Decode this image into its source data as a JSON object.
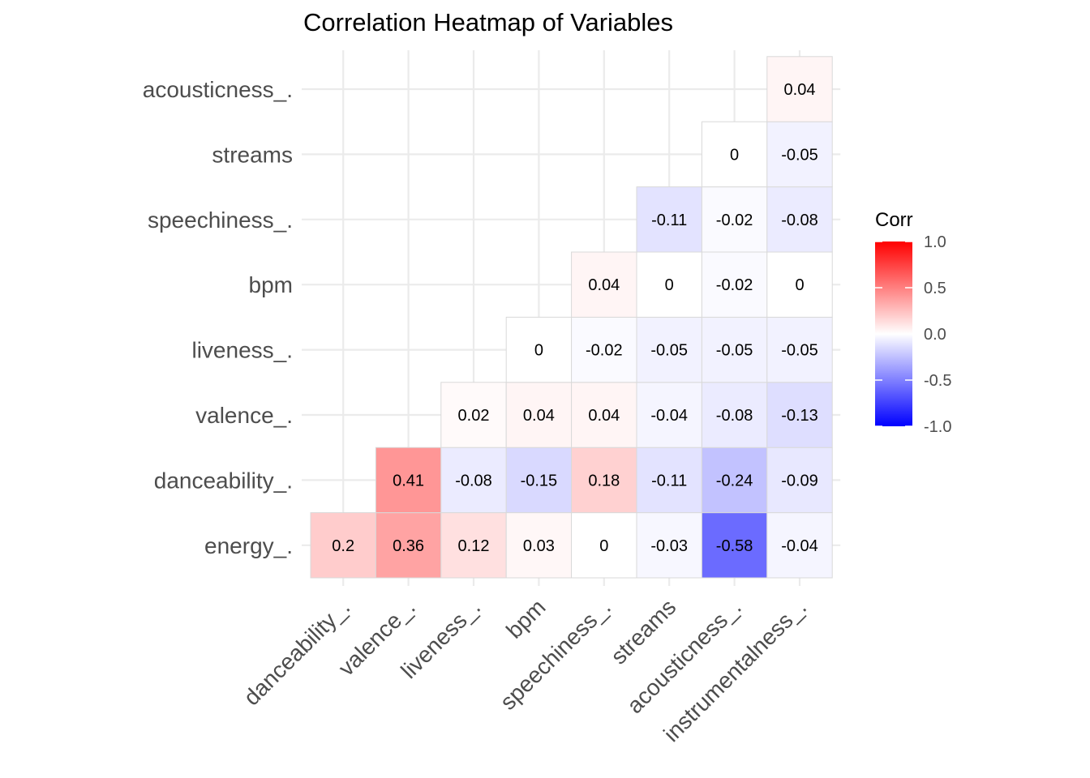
{
  "chart_data": {
    "type": "heatmap",
    "title": "Correlation Heatmap of Variables",
    "x_labels": [
      "danceability_.",
      "valence_.",
      "liveness_.",
      "bpm",
      "speechiness_.",
      "streams",
      "acousticness_.",
      "instrumentalness_."
    ],
    "y_labels": [
      "energy_.",
      "danceability_.",
      "valence_.",
      "liveness_.",
      "bpm",
      "speechiness_.",
      "streams",
      "acousticness_."
    ],
    "cells": [
      {
        "x": "danceability_.",
        "y": "energy_.",
        "value": 0.2,
        "label": "0.2"
      },
      {
        "x": "valence_.",
        "y": "energy_.",
        "value": 0.36,
        "label": "0.36"
      },
      {
        "x": "liveness_.",
        "y": "energy_.",
        "value": 0.12,
        "label": "0.12"
      },
      {
        "x": "bpm",
        "y": "energy_.",
        "value": 0.03,
        "label": "0.03"
      },
      {
        "x": "speechiness_.",
        "y": "energy_.",
        "value": 0,
        "label": "0"
      },
      {
        "x": "streams",
        "y": "energy_.",
        "value": -0.03,
        "label": "-0.03"
      },
      {
        "x": "acousticness_.",
        "y": "energy_.",
        "value": -0.58,
        "label": "-0.58"
      },
      {
        "x": "instrumentalness_.",
        "y": "energy_.",
        "value": -0.04,
        "label": "-0.04"
      },
      {
        "x": "valence_.",
        "y": "danceability_.",
        "value": 0.41,
        "label": "0.41"
      },
      {
        "x": "liveness_.",
        "y": "danceability_.",
        "value": -0.08,
        "label": "-0.08"
      },
      {
        "x": "bpm",
        "y": "danceability_.",
        "value": -0.15,
        "label": "-0.15"
      },
      {
        "x": "speechiness_.",
        "y": "danceability_.",
        "value": 0.18,
        "label": "0.18"
      },
      {
        "x": "streams",
        "y": "danceability_.",
        "value": -0.11,
        "label": "-0.11"
      },
      {
        "x": "acousticness_.",
        "y": "danceability_.",
        "value": -0.24,
        "label": "-0.24"
      },
      {
        "x": "instrumentalness_.",
        "y": "danceability_.",
        "value": -0.09,
        "label": "-0.09"
      },
      {
        "x": "liveness_.",
        "y": "valence_.",
        "value": 0.02,
        "label": "0.02"
      },
      {
        "x": "bpm",
        "y": "valence_.",
        "value": 0.04,
        "label": "0.04"
      },
      {
        "x": "speechiness_.",
        "y": "valence_.",
        "value": 0.04,
        "label": "0.04"
      },
      {
        "x": "streams",
        "y": "valence_.",
        "value": -0.04,
        "label": "-0.04"
      },
      {
        "x": "acousticness_.",
        "y": "valence_.",
        "value": -0.08,
        "label": "-0.08"
      },
      {
        "x": "instrumentalness_.",
        "y": "valence_.",
        "value": -0.13,
        "label": "-0.13"
      },
      {
        "x": "bpm",
        "y": "liveness_.",
        "value": 0,
        "label": "0"
      },
      {
        "x": "speechiness_.",
        "y": "liveness_.",
        "value": -0.02,
        "label": "-0.02"
      },
      {
        "x": "streams",
        "y": "liveness_.",
        "value": -0.05,
        "label": "-0.05"
      },
      {
        "x": "acousticness_.",
        "y": "liveness_.",
        "value": -0.05,
        "label": "-0.05"
      },
      {
        "x": "instrumentalness_.",
        "y": "liveness_.",
        "value": -0.05,
        "label": "-0.05"
      },
      {
        "x": "speechiness_.",
        "y": "bpm",
        "value": 0.04,
        "label": "0.04"
      },
      {
        "x": "streams",
        "y": "bpm",
        "value": 0,
        "label": "0"
      },
      {
        "x": "acousticness_.",
        "y": "bpm",
        "value": -0.02,
        "label": "-0.02"
      },
      {
        "x": "instrumentalness_.",
        "y": "bpm",
        "value": 0,
        "label": "0"
      },
      {
        "x": "streams",
        "y": "speechiness_.",
        "value": -0.11,
        "label": "-0.11"
      },
      {
        "x": "acousticness_.",
        "y": "speechiness_.",
        "value": -0.02,
        "label": "-0.02"
      },
      {
        "x": "instrumentalness_.",
        "y": "speechiness_.",
        "value": -0.08,
        "label": "-0.08"
      },
      {
        "x": "acousticness_.",
        "y": "streams",
        "value": 0,
        "label": "0"
      },
      {
        "x": "instrumentalness_.",
        "y": "streams",
        "value": -0.05,
        "label": "-0.05"
      },
      {
        "x": "instrumentalness_.",
        "y": "acousticness_.",
        "value": 0.04,
        "label": "0.04"
      }
    ],
    "legend": {
      "title": "Corr",
      "range": [
        -1,
        1
      ],
      "ticks": [
        "1.0",
        "0.5",
        "0.0",
        "-0.5",
        "-1.0"
      ],
      "tick_values": [
        1,
        0.5,
        0,
        -0.5,
        -1
      ],
      "placement": "right"
    },
    "colors": {
      "low": "#0000ff",
      "mid": "#ffffff",
      "high": "#ff0000",
      "grid": "#ebebeb",
      "tile_border": "#d9d9d9"
    },
    "grid": true
  }
}
